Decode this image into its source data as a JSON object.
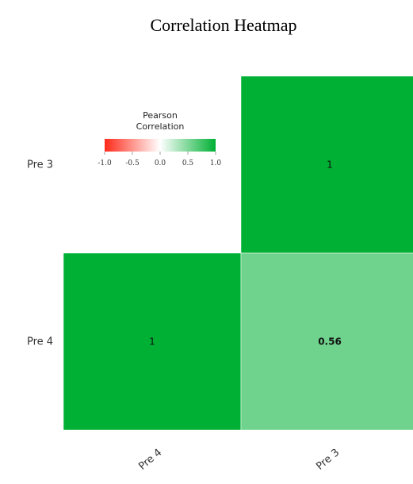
{
  "chart_data": {
    "type": "heatmap",
    "title": "Correlation Heatmap",
    "rows": [
      "Pre 3",
      "Pre 4"
    ],
    "columns": [
      "Pre 4",
      "Pre 3"
    ],
    "cells": [
      {
        "row": "Pre 3",
        "column": "Pre 3",
        "value": 1,
        "label": "1"
      },
      {
        "row": "Pre 4",
        "column": "Pre 4",
        "value": 1,
        "label": "1"
      },
      {
        "row": "Pre 4",
        "column": "Pre 3",
        "value": 0.56,
        "label": "0.56"
      }
    ],
    "legend": {
      "title_lines": [
        "Pearson",
        "Correlation"
      ],
      "ticks": [
        "-1.0",
        "-0.5",
        "0.0",
        "0.5",
        "1.0"
      ],
      "range": [
        -1,
        1
      ],
      "colors": {
        "low": "#ff2a1a",
        "mid": "#ffffff",
        "high": "#00b034"
      },
      "placement": "top-left"
    }
  }
}
